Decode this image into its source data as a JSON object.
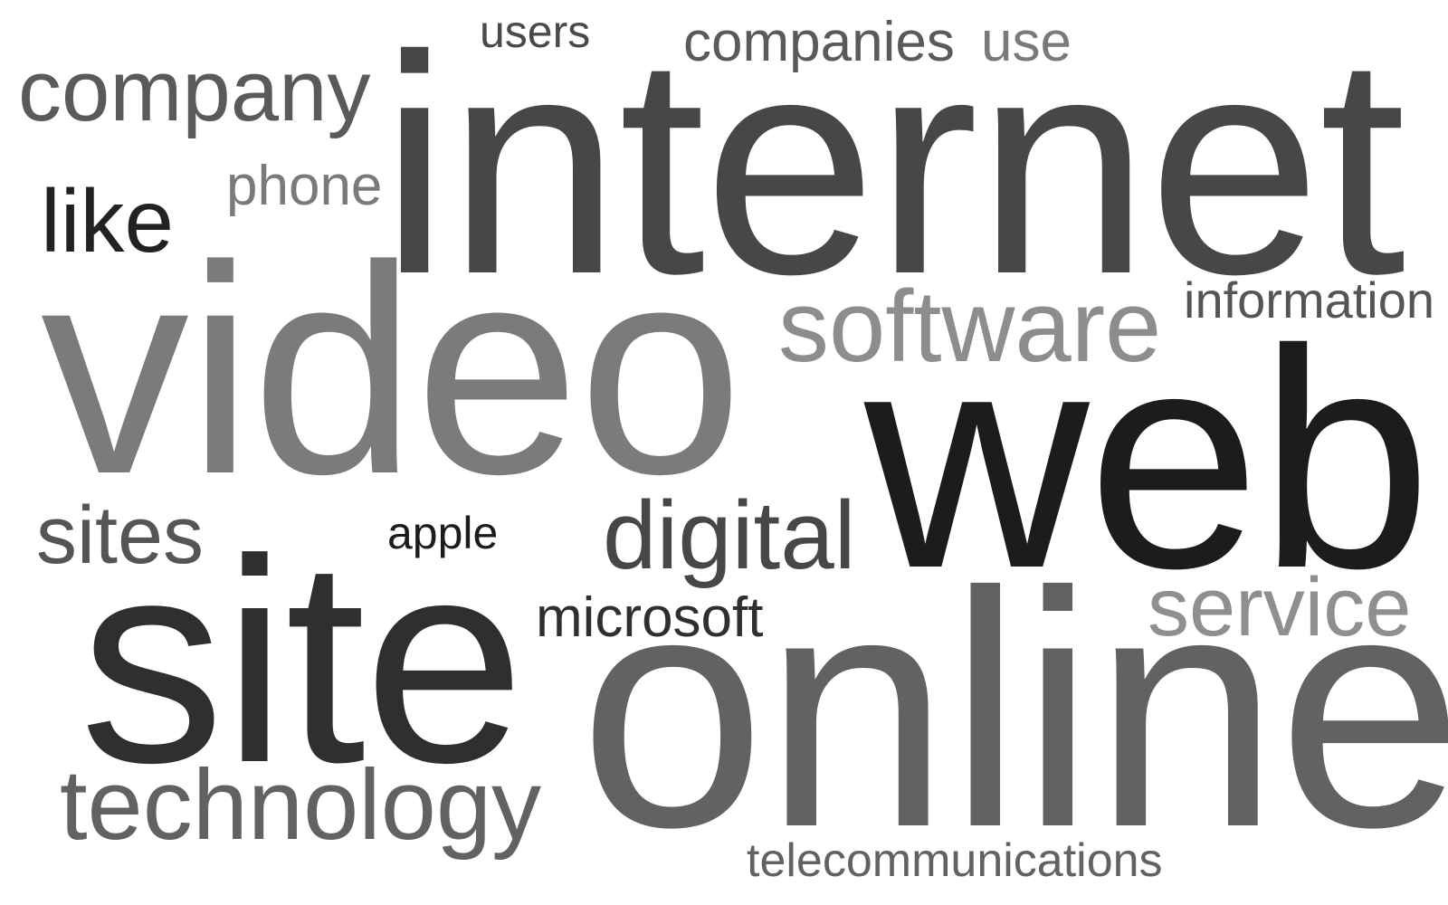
{
  "words": {
    "users": "users",
    "companies": "companies",
    "use": "use",
    "company": "company",
    "internet": "internet",
    "phone": "phone",
    "like": "like",
    "video": "video",
    "software": "software",
    "information": "information",
    "web": "web",
    "sites": "sites",
    "apple": "apple",
    "digital": "digital",
    "site": "site",
    "microsoft": "microsoft",
    "service": "service",
    "online": "online",
    "technology": "technology",
    "telecommunications": "telecommunications"
  },
  "colors": {
    "background": "#ffffff",
    "darkest": "#1c1c1c",
    "dark": "#2f2f2f",
    "medium": "#626262",
    "light": "#8d8d8d"
  }
}
